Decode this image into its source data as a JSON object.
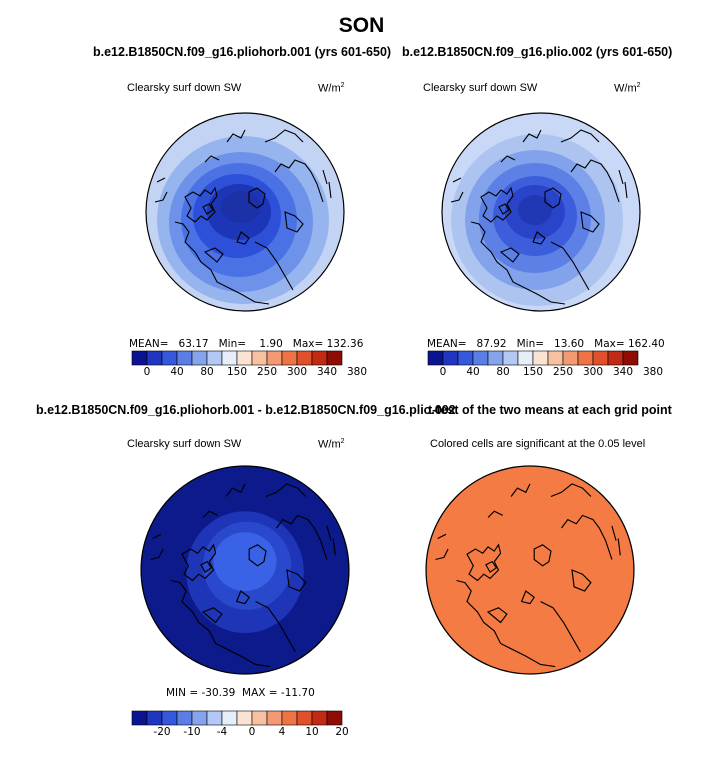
{
  "main_title": "SON",
  "panels": [
    {
      "title": "b.e12.B1850CN.f09_g16.pliohorb.001 (yrs 601-650)",
      "variable": "Clearsky surf down SW",
      "units_base": "W/m",
      "units_sup": "2",
      "stats": "MEAN=   63.17   Min=    1.90   Max= 132.36",
      "colorbar_ticks": [
        "0",
        "40",
        "80",
        "150",
        "250",
        "300",
        "340",
        "380"
      ],
      "colors": {
        "outer": "#c3d3f4",
        "ring2": "#96b4ee",
        "ring3": "#6e92ea",
        "ring4": "#4a72e4",
        "ring5": "#2e50d8",
        "ring6": "#1d36b8",
        "center": "#1c30a8"
      }
    },
    {
      "title": "b.e12.B1850CN.f09_g16.plio.002 (yrs 601-650)",
      "variable": "Clearsky surf down SW",
      "units_base": "W/m",
      "units_sup": "2",
      "stats": "MEAN=   87.92   Min=   13.60   Max= 162.40",
      "colorbar_ticks": [
        "0",
        "40",
        "80",
        "150",
        "250",
        "300",
        "340",
        "380"
      ],
      "colors": {
        "outer": "#c9d8f6",
        "ring2": "#adc4f1",
        "ring3": "#82a2ec",
        "ring4": "#5d80e6",
        "ring5": "#3c5edc",
        "ring6": "#2944c8",
        "center": "#2038b4"
      }
    },
    {
      "title": "b.e12.B1850CN.f09_g16.pliohorb.001 - b.e12.B1850CN.f09_g16.plio.002",
      "variable": "Clearsky surf down SW",
      "units_base": "W/m",
      "units_sup": "2",
      "stats": "MIN = -30.39  MAX = -11.70",
      "colorbar_ticks": [
        "-20",
        "-10",
        "-4",
        "0",
        "4",
        "10",
        "20"
      ],
      "colors": {
        "outer": "#0d1a8c",
        "ring2": "#1f35b8",
        "ring3": "#2a48cc",
        "center": "#3a62e6"
      }
    },
    {
      "title": "t-test of the two means at each grid point",
      "variable": "Colored cells are significant at the 0.05 level",
      "colors": {
        "fill": "#f47b43"
      }
    }
  ],
  "colorbar_colors": [
    "#0a1490",
    "#1e36c0",
    "#3658dc",
    "#5a7de6",
    "#86a4ee",
    "#b3c8f4",
    "#e6eefa",
    "#fbe3d3",
    "#f7c1a1",
    "#f39a74",
    "#ee7444",
    "#e1502a",
    "#c22a14",
    "#8e0c04"
  ]
}
